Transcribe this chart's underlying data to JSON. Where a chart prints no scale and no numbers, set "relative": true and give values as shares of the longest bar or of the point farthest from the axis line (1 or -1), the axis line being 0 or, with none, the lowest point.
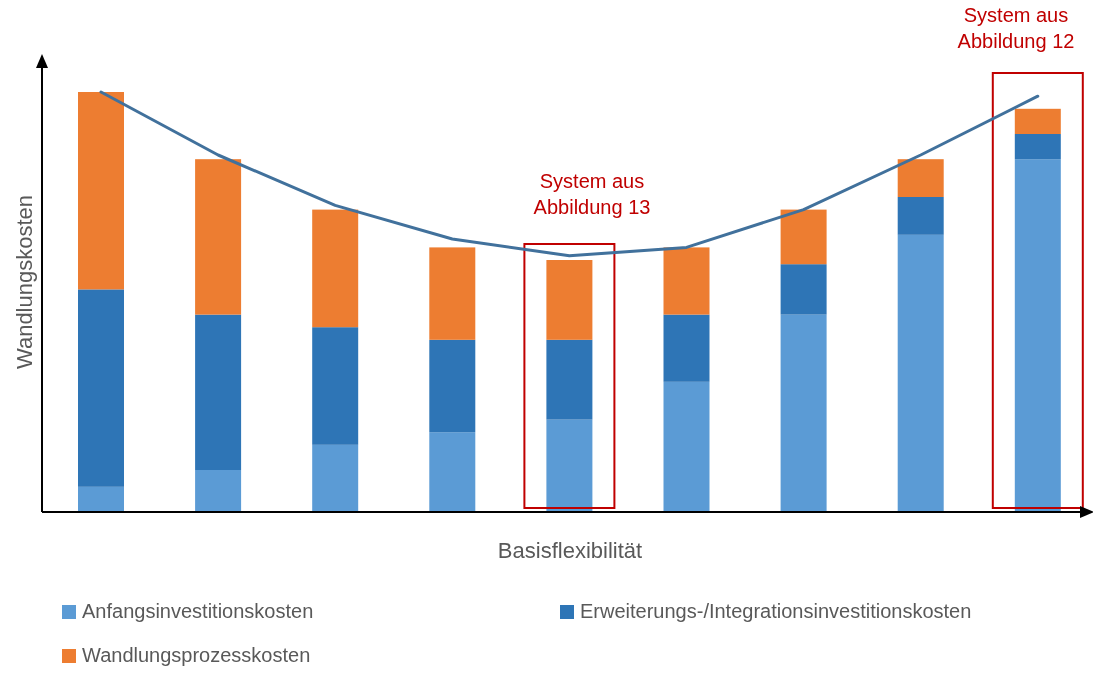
{
  "chart_data": [
    {
      "type": "bar",
      "stacked": true,
      "relative": true,
      "xlabel": "Basisflexibilität",
      "ylabel": "Wandlungskosten",
      "legend": "bottom",
      "categories": [
        null,
        null,
        null,
        null,
        null,
        null,
        null,
        null,
        null
      ],
      "series": [
        {
          "name": "Anfangsinvestitionskosten",
          "color": "#5b9bd5",
          "values": [
            0.06,
            0.1,
            0.16,
            0.19,
            0.22,
            0.31,
            0.47,
            0.66,
            0.84
          ]
        },
        {
          "name": "Erweiterungs-/Integrationsinvestitionskosten",
          "color": "#2e75b6",
          "values": [
            0.47,
            0.37,
            0.28,
            0.22,
            0.19,
            0.16,
            0.12,
            0.09,
            0.06
          ]
        },
        {
          "name": "Wandlungsprozesskosten",
          "color": "#ed7d31",
          "values": [
            0.47,
            0.37,
            0.28,
            0.22,
            0.19,
            0.16,
            0.13,
            0.09,
            0.06
          ]
        }
      ],
      "annotations": [
        "System aus Abbildung 13",
        "System aus Abbildung 12"
      ]
    },
    {
      "type": "line",
      "relative": true,
      "categories": [
        null,
        null,
        null,
        null,
        null,
        null,
        null,
        null,
        null
      ],
      "series": [
        {
          "color": "#41719c",
          "values": [
            1.0,
            0.85,
            0.73,
            0.65,
            0.61,
            0.63,
            0.72,
            0.85,
            0.99
          ]
        }
      ]
    }
  ]
}
